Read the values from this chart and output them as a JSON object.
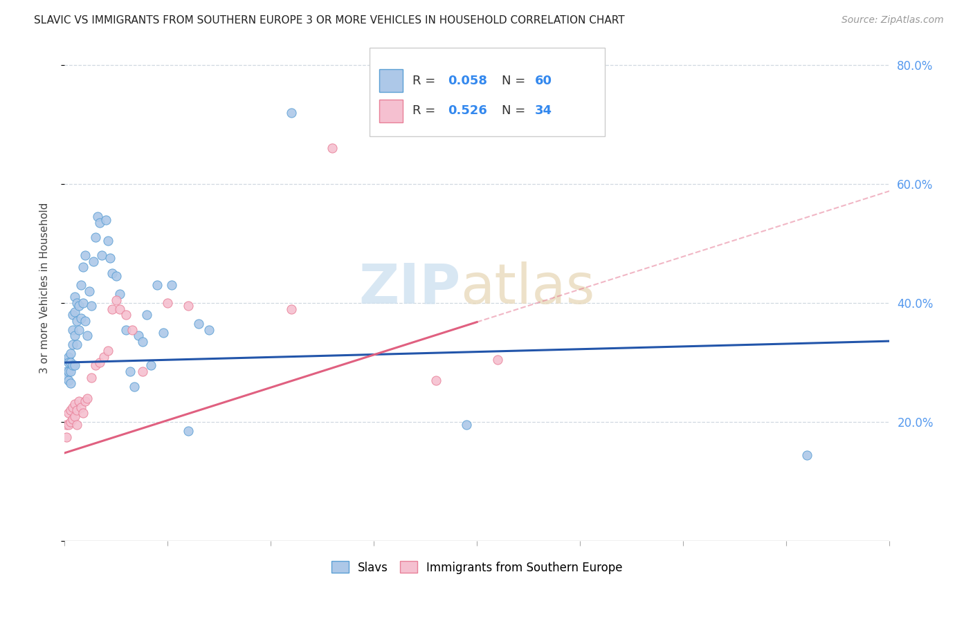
{
  "title": "SLAVIC VS IMMIGRANTS FROM SOUTHERN EUROPE 3 OR MORE VEHICLES IN HOUSEHOLD CORRELATION CHART",
  "source": "Source: ZipAtlas.com",
  "ylabel": "3 or more Vehicles in Household",
  "slavs_color": "#adc8e8",
  "slavs_edge_color": "#5a9fd4",
  "slavs_line_color": "#2255aa",
  "immigrants_color": "#f5c0d0",
  "immigrants_edge_color": "#e88098",
  "immigrants_line_color": "#e06080",
  "background_color": "#ffffff",
  "grid_color": "#d0d8e0",
  "right_tick_color": "#5599ee",
  "slavs_x": [
    0.001,
    0.001,
    0.001,
    0.002,
    0.002,
    0.002,
    0.002,
    0.003,
    0.003,
    0.003,
    0.003,
    0.004,
    0.004,
    0.004,
    0.004,
    0.005,
    0.005,
    0.005,
    0.005,
    0.006,
    0.006,
    0.006,
    0.007,
    0.007,
    0.008,
    0.008,
    0.009,
    0.009,
    0.01,
    0.01,
    0.011,
    0.012,
    0.013,
    0.014,
    0.015,
    0.016,
    0.017,
    0.018,
    0.02,
    0.021,
    0.022,
    0.023,
    0.025,
    0.027,
    0.03,
    0.032,
    0.034,
    0.036,
    0.038,
    0.04,
    0.042,
    0.045,
    0.048,
    0.052,
    0.06,
    0.065,
    0.07,
    0.11,
    0.195,
    0.36
  ],
  "slavs_y": [
    0.305,
    0.285,
    0.275,
    0.31,
    0.3,
    0.285,
    0.27,
    0.315,
    0.3,
    0.285,
    0.265,
    0.38,
    0.355,
    0.33,
    0.295,
    0.41,
    0.385,
    0.345,
    0.295,
    0.4,
    0.37,
    0.33,
    0.395,
    0.355,
    0.43,
    0.375,
    0.46,
    0.4,
    0.48,
    0.37,
    0.345,
    0.42,
    0.395,
    0.47,
    0.51,
    0.545,
    0.535,
    0.48,
    0.54,
    0.505,
    0.475,
    0.45,
    0.445,
    0.415,
    0.355,
    0.285,
    0.26,
    0.345,
    0.335,
    0.38,
    0.295,
    0.43,
    0.35,
    0.43,
    0.185,
    0.365,
    0.355,
    0.72,
    0.195,
    0.145
  ],
  "immigrants_x": [
    0.001,
    0.001,
    0.002,
    0.002,
    0.003,
    0.003,
    0.004,
    0.004,
    0.005,
    0.005,
    0.006,
    0.006,
    0.007,
    0.008,
    0.009,
    0.01,
    0.011,
    0.013,
    0.015,
    0.017,
    0.019,
    0.021,
    0.023,
    0.025,
    0.027,
    0.03,
    0.033,
    0.038,
    0.05,
    0.06,
    0.11,
    0.13,
    0.18,
    0.21
  ],
  "immigrants_y": [
    0.195,
    0.175,
    0.215,
    0.195,
    0.22,
    0.2,
    0.225,
    0.205,
    0.23,
    0.21,
    0.22,
    0.195,
    0.235,
    0.225,
    0.215,
    0.235,
    0.24,
    0.275,
    0.295,
    0.3,
    0.31,
    0.32,
    0.39,
    0.405,
    0.39,
    0.38,
    0.355,
    0.285,
    0.4,
    0.395,
    0.39,
    0.66,
    0.27,
    0.305
  ],
  "slavs_intercept": 0.3,
  "slavs_slope": 0.09,
  "immigrants_intercept": 0.148,
  "immigrants_slope": 1.1,
  "xlim": [
    0.0,
    0.4
  ],
  "ylim": [
    0.0,
    0.85
  ],
  "yticks": [
    0.0,
    0.2,
    0.4,
    0.6,
    0.8
  ],
  "ytick_labels": [
    "",
    "20.0%",
    "40.0%",
    "60.0%",
    "80.0%"
  ]
}
